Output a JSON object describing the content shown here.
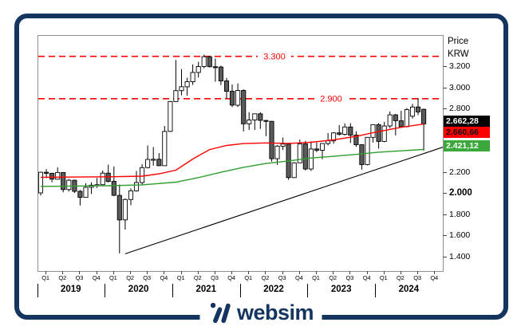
{
  "colors": {
    "navy": "#143560",
    "red": "#ff0000",
    "green_line": "#2e9e2e",
    "green_tag": "#3aa83a",
    "candle_down": "#5b5b5b",
    "candle_up": "#ffffff",
    "plot_border": "#909090"
  },
  "axis_right": {
    "title_line1": "Price",
    "title_line2": "KRW",
    "ticks": [
      {
        "label": "3.200",
        "value": 3200,
        "bold": false
      },
      {
        "label": "3.000",
        "value": 3000,
        "bold": false
      },
      {
        "label": "2.800",
        "value": 2800,
        "bold": false
      },
      {
        "label": "2.200",
        "value": 2200,
        "bold": false
      },
      {
        "label": "2.000",
        "value": 2000,
        "bold": true
      },
      {
        "label": "1.800",
        "value": 1800,
        "bold": false
      },
      {
        "label": "1.600",
        "value": 1600,
        "bold": false
      },
      {
        "label": "1.400",
        "value": 1400,
        "bold": false
      }
    ],
    "price_tags": [
      {
        "label": "2.662,28",
        "value": 2662.28,
        "bg": "#000000",
        "fg": "#ffffff",
        "meaning": "last-price"
      },
      {
        "label": "2.660,66",
        "value": 2660.66,
        "bg": "#ff0000",
        "fg": "#111111",
        "meaning": "red-ma-value"
      },
      {
        "label": "2.421,12",
        "value": 2421.12,
        "bg": "#3aa83a",
        "fg": "#ffffff",
        "meaning": "green-ma-value"
      }
    ]
  },
  "x_axis": {
    "quarters": [
      "Q1",
      "Q2",
      "Q3",
      "Q4",
      "Q1",
      "Q2",
      "Q3",
      "Q4",
      "Q1",
      "Q2",
      "Q3",
      "Q4",
      "Q1",
      "Q2",
      "Q3",
      "Q4",
      "Q1",
      "Q2",
      "Q3",
      "Q4",
      "Q1",
      "Q2",
      "Q3",
      "Q4"
    ],
    "years": [
      "2019",
      "2020",
      "2021",
      "2022",
      "2023",
      "2024"
    ]
  },
  "footer": {
    "brand": "websim"
  },
  "chart_data": {
    "type": "candlestick",
    "title": "",
    "unit": "KRW",
    "frequency": "monthly",
    "start": "2019-01",
    "ylim": [
      1265,
      3495
    ],
    "grid": false,
    "candles": [
      [
        2010,
        2210,
        1985,
        2205
      ],
      [
        2205,
        2235,
        2150,
        2195
      ],
      [
        2195,
        2200,
        2110,
        2140
      ],
      [
        2140,
        2252,
        2135,
        2203
      ],
      [
        2203,
        2205,
        2016,
        2042
      ],
      [
        2042,
        2140,
        2023,
        2130
      ],
      [
        2130,
        2135,
        2010,
        2025
      ],
      [
        2025,
        2038,
        1891,
        1968
      ],
      [
        1968,
        2101,
        1966,
        2063
      ],
      [
        2063,
        2110,
        2000,
        2083
      ],
      [
        2083,
        2151,
        2057,
        2088
      ],
      [
        2088,
        2222,
        2084,
        2197
      ],
      [
        2197,
        2277,
        2108,
        2119
      ],
      [
        2119,
        2260,
        1980,
        1987
      ],
      [
        1987,
        2089,
        1439,
        1755
      ],
      [
        1755,
        1957,
        1664,
        1948
      ],
      [
        1948,
        2054,
        1894,
        2030
      ],
      [
        2030,
        2217,
        2022,
        2108
      ],
      [
        2108,
        2281,
        2090,
        2249
      ],
      [
        2249,
        2458,
        2241,
        2326
      ],
      [
        2326,
        2443,
        2267,
        2328
      ],
      [
        2328,
        2387,
        2266,
        2267
      ],
      [
        2267,
        2642,
        2276,
        2591
      ],
      [
        2591,
        2878,
        2586,
        2873
      ],
      [
        2873,
        3266,
        2869,
        2976
      ],
      [
        2976,
        3180,
        2932,
        3013
      ],
      [
        3013,
        3098,
        2929,
        3061
      ],
      [
        3061,
        3224,
        3030,
        3148
      ],
      [
        3148,
        3249,
        3100,
        3204
      ],
      [
        3204,
        3316,
        3187,
        3297
      ],
      [
        3297,
        3305,
        3196,
        3202
      ],
      [
        3202,
        3280,
        3060,
        3199
      ],
      [
        3199,
        3212,
        3030,
        3068
      ],
      [
        3068,
        3096,
        2902,
        2970
      ],
      [
        2970,
        3034,
        2822,
        2839
      ],
      [
        2839,
        3044,
        2822,
        2978
      ],
      [
        2978,
        2989,
        2591,
        2663
      ],
      [
        2663,
        2772,
        2605,
        2699
      ],
      [
        2699,
        2759,
        2604,
        2757
      ],
      [
        2757,
        2773,
        2615,
        2695
      ],
      [
        2695,
        2700,
        2546,
        2686
      ],
      [
        2686,
        2690,
        2306,
        2333
      ],
      [
        2333,
        2461,
        2276,
        2452
      ],
      [
        2452,
        2533,
        2415,
        2472
      ],
      [
        2472,
        2479,
        2134,
        2155
      ],
      [
        2155,
        2301,
        2150,
        2294
      ],
      [
        2294,
        2514,
        2293,
        2473
      ],
      [
        2473,
        2501,
        2222,
        2236
      ],
      [
        2236,
        2497,
        2218,
        2425
      ],
      [
        2425,
        2486,
        2396,
        2413
      ],
      [
        2413,
        2476,
        2327,
        2477
      ],
      [
        2477,
        2575,
        2460,
        2502
      ],
      [
        2502,
        2585,
        2475,
        2577
      ],
      [
        2577,
        2651,
        2551,
        2564
      ],
      [
        2564,
        2667,
        2553,
        2633
      ],
      [
        2633,
        2668,
        2482,
        2556
      ],
      [
        2556,
        2593,
        2445,
        2466
      ],
      [
        2466,
        2470,
        2230,
        2278
      ],
      [
        2278,
        2536,
        2270,
        2535
      ],
      [
        2535,
        2656,
        2485,
        2655
      ],
      [
        2655,
        2669,
        2429,
        2497
      ],
      [
        2497,
        2682,
        2489,
        2642
      ],
      [
        2642,
        2780,
        2622,
        2747
      ],
      [
        2747,
        2757,
        2553,
        2692
      ],
      [
        2692,
        2785,
        2629,
        2636
      ],
      [
        2636,
        2812,
        2630,
        2797
      ],
      [
        2735,
        2852,
        2712,
        2822
      ],
      [
        2822,
        2906,
        2745,
        2775
      ],
      [
        2800,
        2806,
        2410,
        2662.28
      ]
    ],
    "red_ma": [
      [
        0,
        2158
      ],
      [
        6,
        2160
      ],
      [
        12,
        2162
      ],
      [
        18,
        2168
      ],
      [
        21,
        2190
      ],
      [
        24,
        2225
      ],
      [
        27,
        2330
      ],
      [
        30,
        2420
      ],
      [
        33,
        2458
      ],
      [
        36,
        2476
      ],
      [
        40,
        2482
      ],
      [
        44,
        2478
      ],
      [
        48,
        2488
      ],
      [
        52,
        2512
      ],
      [
        56,
        2545
      ],
      [
        60,
        2590
      ],
      [
        64,
        2630
      ],
      [
        68,
        2660.66
      ]
    ],
    "green_ma": [
      [
        0,
        2072
      ],
      [
        6,
        2075
      ],
      [
        12,
        2078
      ],
      [
        18,
        2086
      ],
      [
        24,
        2112
      ],
      [
        28,
        2155
      ],
      [
        32,
        2205
      ],
      [
        36,
        2252
      ],
      [
        40,
        2288
      ],
      [
        44,
        2312
      ],
      [
        48,
        2340
      ],
      [
        52,
        2356
      ],
      [
        56,
        2374
      ],
      [
        60,
        2395
      ],
      [
        64,
        2408
      ],
      [
        68,
        2421.12
      ]
    ],
    "trendline": [
      [
        15,
        1435
      ],
      [
        71.55,
        2445
      ]
    ],
    "levels": [
      {
        "value": 3300,
        "label": "3.300",
        "label_cx": 296
      },
      {
        "value": 2900,
        "label": "2.900",
        "label_cx": 367
      }
    ]
  }
}
